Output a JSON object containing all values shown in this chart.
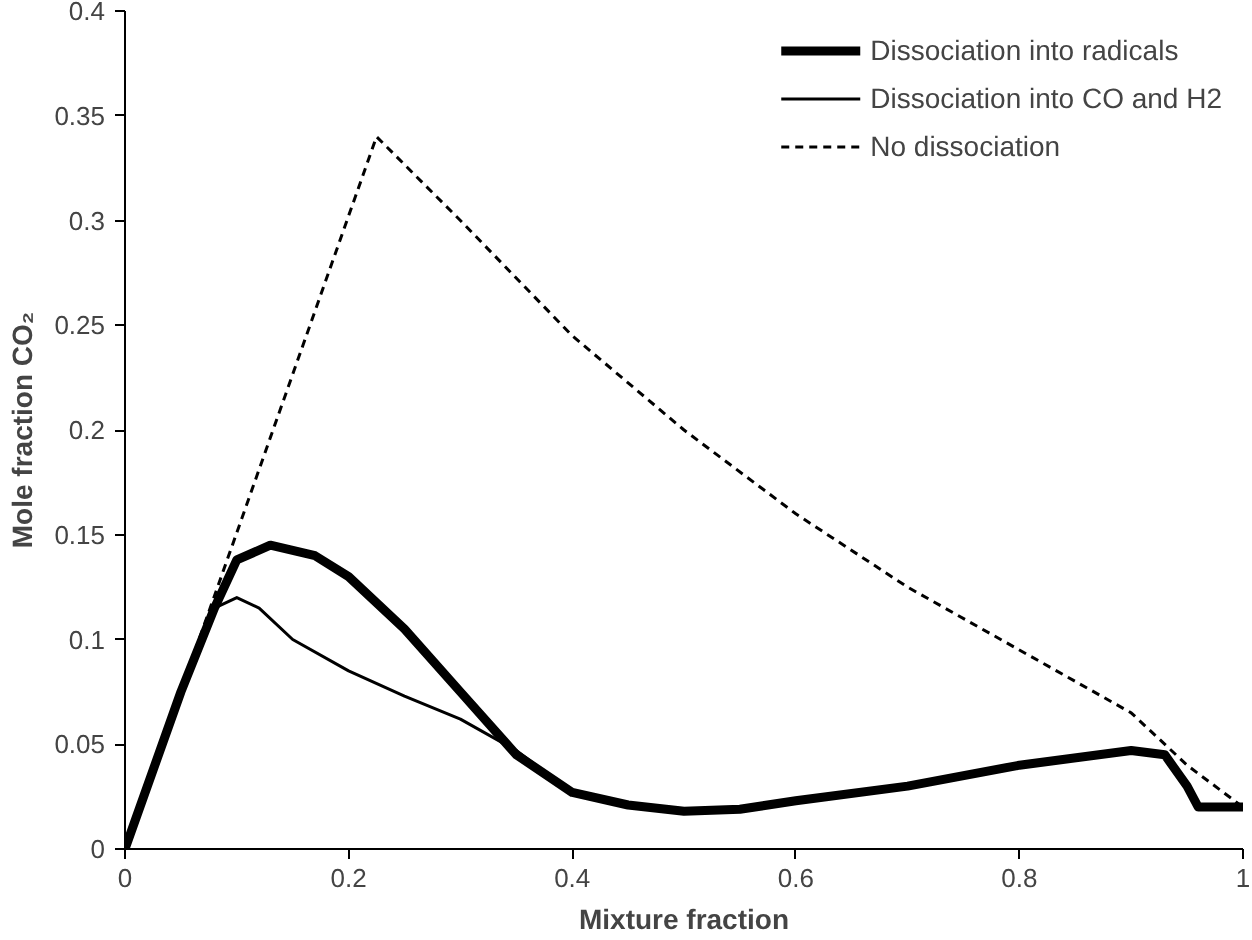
{
  "chart_data": {
    "type": "line",
    "xlabel": "Mixture fraction",
    "ylabel": "Mole fraction CO₂",
    "xlim": [
      0,
      1
    ],
    "ylim": [
      0,
      0.4
    ],
    "xticks": [
      0,
      0.2,
      0.4,
      0.6,
      0.8,
      1
    ],
    "yticks": [
      0,
      0.05,
      0.1,
      0.15,
      0.2,
      0.25,
      0.3,
      0.35,
      0.4
    ],
    "grid": false,
    "legend": "top right",
    "marker": "none",
    "series": [
      {
        "name": "Dissociation into radicals",
        "color": "#000000",
        "line_style": "solid",
        "x": [
          0,
          0.05,
          0.08,
          0.1,
          0.13,
          0.17,
          0.2,
          0.25,
          0.3,
          0.35,
          0.4,
          0.45,
          0.5,
          0.55,
          0.6,
          0.7,
          0.8,
          0.9,
          0.93,
          0.95,
          0.96,
          1.0
        ],
        "values": [
          0,
          0.075,
          0.115,
          0.138,
          0.145,
          0.14,
          0.13,
          0.105,
          0.075,
          0.045,
          0.027,
          0.021,
          0.018,
          0.019,
          0.023,
          0.03,
          0.04,
          0.047,
          0.045,
          0.03,
          0.02,
          0.02
        ]
      },
      {
        "name": "Dissociation into CO and H2",
        "color": "#000000",
        "line_style": "solid",
        "x": [
          0,
          0.05,
          0.08,
          0.1,
          0.12,
          0.15,
          0.2,
          0.25,
          0.3,
          0.35,
          0.4,
          0.45,
          0.5,
          0.55,
          0.6,
          0.7,
          0.8,
          0.9,
          0.93,
          0.95,
          0.96,
          1.0
        ],
        "values": [
          0,
          0.075,
          0.115,
          0.12,
          0.115,
          0.1,
          0.085,
          0.073,
          0.062,
          0.047,
          0.027,
          0.021,
          0.018,
          0.019,
          0.023,
          0.03,
          0.04,
          0.047,
          0.045,
          0.03,
          0.02,
          0.02
        ]
      },
      {
        "name": "No dissociation",
        "color": "#000000",
        "line_style": "dashed",
        "x": [
          0,
          0.1,
          0.225,
          0.3,
          0.4,
          0.5,
          0.6,
          0.7,
          0.8,
          0.9,
          0.95,
          1.0
        ],
        "values": [
          0,
          0.151,
          0.34,
          0.3,
          0.245,
          0.2,
          0.16,
          0.125,
          0.095,
          0.065,
          0.04,
          0.02
        ]
      }
    ]
  }
}
